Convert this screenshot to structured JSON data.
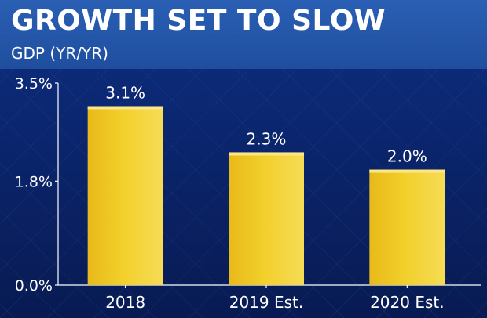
{
  "header": {
    "title": "GROWTH SET TO SLOW",
    "subtitle": "GDP (YR/YR)"
  },
  "colors": {
    "header_bg": "#1f4e9e",
    "plot_bg": "#0a1f5e",
    "bar": "#f2cf2a",
    "text": "#ffffff"
  },
  "chart_data": {
    "type": "bar",
    "title": "GROWTH SET TO SLOW",
    "subtitle": "GDP (YR/YR)",
    "categories": [
      "2018",
      "2019 Est.",
      "2020 Est."
    ],
    "values": [
      3.1,
      2.3,
      2.0
    ],
    "value_labels": [
      "3.1%",
      "2.3%",
      "2.0%"
    ],
    "ylim": [
      0,
      3.5
    ],
    "yticks": [
      0,
      1.8,
      3.5
    ],
    "ytick_labels": [
      "0.0%",
      "1.8%",
      "3.5%"
    ],
    "xlabel": "",
    "ylabel": "",
    "grid": false,
    "legend": "none"
  }
}
